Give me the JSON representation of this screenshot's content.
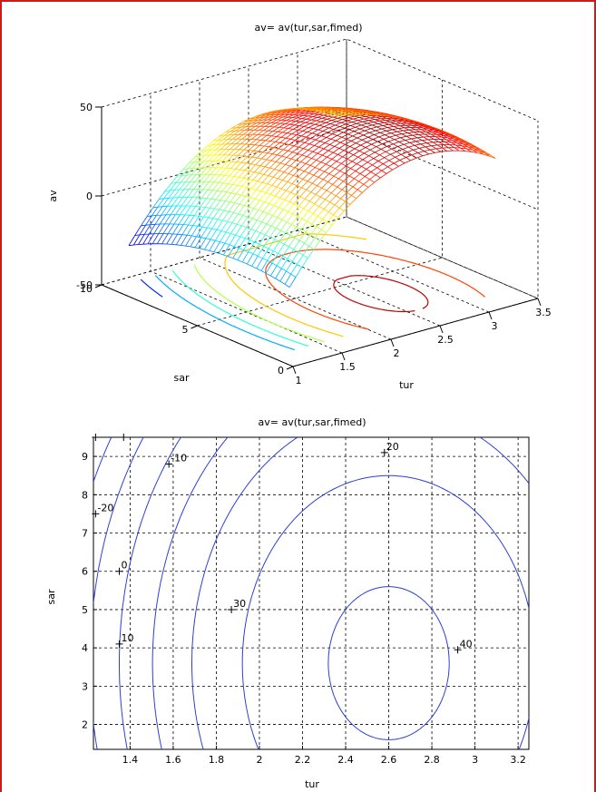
{
  "colors": {
    "frame": "#cc1b1b",
    "contour_line": "#2a3fd6"
  },
  "chart_data": [
    {
      "type": "surface",
      "title": "av= av(tur,sar,fimed)",
      "xlabel": "tur",
      "ylabel": "sar",
      "zlabel": "av",
      "xlim": [
        1,
        3.5
      ],
      "ylim": [
        0,
        10
      ],
      "zlim": [
        -50,
        50
      ],
      "x_ticks": [
        "1",
        "1.5",
        "2",
        "2.5",
        "3",
        "3.5"
      ],
      "y_ticks": [
        "0",
        "5",
        "10"
      ],
      "z_ticks": [
        "-50",
        "0",
        "50"
      ],
      "grid": true,
      "colormap": "jet",
      "surface_extent": {
        "tur": [
          1.2,
          3.3
        ],
        "sar": [
          1.2,
          9.6
        ]
      },
      "z_range_shown": [
        -33,
        45
      ],
      "projected_contours": true
    },
    {
      "type": "contour",
      "title": "av= av(tur,sar,fimed)",
      "xlabel": "tur",
      "ylabel": "sar",
      "xlim": [
        1.23,
        3.25
      ],
      "ylim": [
        1.35,
        9.5
      ],
      "x_ticks": [
        "1.4",
        "1.6",
        "1.8",
        "2",
        "2.2",
        "2.4",
        "2.6",
        "2.8",
        "3",
        "3.2"
      ],
      "y_ticks": [
        "2",
        "3",
        "4",
        "5",
        "6",
        "7",
        "8",
        "9"
      ],
      "grid": true,
      "contour_levels": [
        -30,
        -20,
        -10,
        0,
        10,
        20,
        30,
        40
      ],
      "level_labels": [
        {
          "text": "-20",
          "tur": 1.24,
          "sar": 7.5
        },
        {
          "text": "-10",
          "tur": 1.58,
          "sar": 8.8
        },
        {
          "text": "0",
          "tur": 1.35,
          "sar": 6.0
        },
        {
          "text": "10",
          "tur": 1.35,
          "sar": 4.1
        },
        {
          "text": "20",
          "tur": 2.58,
          "sar": 9.1
        },
        {
          "text": "30",
          "tur": 1.87,
          "sar": 5.0
        },
        {
          "text": "40",
          "tur": 2.92,
          "sar": 3.95
        }
      ]
    }
  ]
}
